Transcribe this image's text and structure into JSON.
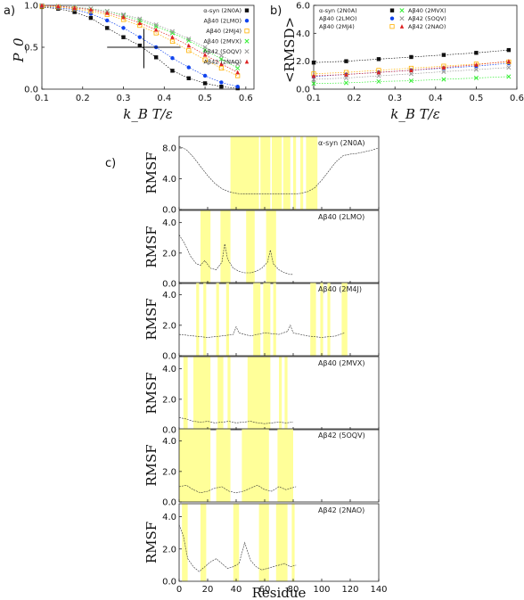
{
  "chart_data": [
    {
      "id": "a",
      "panel_label": "a)",
      "type": "scatter",
      "xlabel": "k_B T/ε",
      "ylabel": "P_0",
      "xlim": [
        0.1,
        0.62
      ],
      "ylim": [
        0,
        1.0
      ],
      "xticks": [
        "0.1",
        "0.2",
        "0.3",
        "0.4",
        "0.5",
        "0.6"
      ],
      "yticks": [
        "0.0",
        "0.5",
        "1.0"
      ],
      "legend_placement": "right",
      "series": [
        {
          "name": "α-syn (2N0A)",
          "color": "#111111",
          "marker": "square-filled",
          "x": [
            0.1,
            0.14,
            0.18,
            0.22,
            0.26,
            0.3,
            0.34,
            0.38,
            0.42,
            0.46,
            0.5,
            0.54,
            0.58
          ],
          "y": [
            0.98,
            0.96,
            0.92,
            0.85,
            0.73,
            0.62,
            0.52,
            0.38,
            0.22,
            0.13,
            0.07,
            0.03,
            0.01
          ]
        },
        {
          "name": "Aβ40 (2LMO)",
          "color": "#1144ee",
          "marker": "circle-filled",
          "x": [
            0.1,
            0.14,
            0.18,
            0.22,
            0.26,
            0.3,
            0.34,
            0.38,
            0.42,
            0.46,
            0.5,
            0.54,
            0.58
          ],
          "y": [
            0.99,
            0.97,
            0.95,
            0.9,
            0.82,
            0.73,
            0.62,
            0.5,
            0.37,
            0.26,
            0.16,
            0.08,
            0.03
          ]
        },
        {
          "name": "Aβ40 (2MJ4)",
          "color": "#ffb000",
          "marker": "square-open",
          "x": [
            0.1,
            0.14,
            0.18,
            0.22,
            0.26,
            0.3,
            0.34,
            0.38,
            0.42,
            0.46,
            0.5,
            0.54,
            0.58
          ],
          "y": [
            0.99,
            0.98,
            0.96,
            0.93,
            0.89,
            0.83,
            0.76,
            0.67,
            0.57,
            0.46,
            0.35,
            0.25,
            0.16
          ]
        },
        {
          "name": "Aβ40 (2MVX)",
          "color": "#33ee33",
          "marker": "x",
          "x": [
            0.1,
            0.14,
            0.18,
            0.22,
            0.26,
            0.3,
            0.34,
            0.38,
            0.42,
            0.46,
            0.5,
            0.54,
            0.58
          ],
          "y": [
            1.0,
            0.99,
            0.98,
            0.96,
            0.93,
            0.88,
            0.82,
            0.75,
            0.67,
            0.58,
            0.47,
            0.36,
            0.25
          ]
        },
        {
          "name": "Aβ42 (5OQV)",
          "color": "#999999",
          "marker": "x",
          "x": [
            0.1,
            0.14,
            0.18,
            0.22,
            0.26,
            0.3,
            0.34,
            0.38,
            0.42,
            0.46,
            0.5,
            0.54,
            0.58
          ],
          "y": [
            1.0,
            0.99,
            0.98,
            0.96,
            0.93,
            0.89,
            0.84,
            0.77,
            0.69,
            0.6,
            0.5,
            0.4,
            0.3
          ]
        },
        {
          "name": "Aβ42 (2NAO)",
          "color": "#dd2222",
          "marker": "triangle-filled",
          "x": [
            0.1,
            0.14,
            0.18,
            0.22,
            0.26,
            0.3,
            0.34,
            0.38,
            0.42,
            0.46,
            0.5,
            0.54,
            0.58
          ],
          "y": [
            1.0,
            0.99,
            0.97,
            0.95,
            0.91,
            0.86,
            0.79,
            0.71,
            0.62,
            0.52,
            0.41,
            0.3,
            0.2
          ]
        }
      ],
      "annotation": {
        "guide_x": 0.35,
        "guide_y": 0.5,
        "hline_x": [
          0.26,
          0.44
        ],
        "vline_y": [
          0.25,
          0.72
        ]
      }
    },
    {
      "id": "b",
      "panel_label": "b)",
      "type": "scatter",
      "xlabel": "k_B T/ε",
      "ylabel": "<RMSD>",
      "xlim": [
        0.1,
        0.6
      ],
      "ylim": [
        0,
        6.0
      ],
      "xticks": [
        "0.1",
        "0.2",
        "0.3",
        "0.4",
        "0.5",
        "0.6"
      ],
      "yticks": [
        "0.0",
        "2.0",
        "4.0",
        "6.0"
      ],
      "legend_placement": "top",
      "series": [
        {
          "name": "α-syn (2N0A)",
          "color": "#111111",
          "marker": "square-filled",
          "x": [
            0.1,
            0.18,
            0.26,
            0.34,
            0.42,
            0.5,
            0.58
          ],
          "y": [
            1.9,
            2.0,
            2.15,
            2.3,
            2.45,
            2.6,
            2.8
          ]
        },
        {
          "name": "Aβ40 (2LMO)",
          "color": "#1144ee",
          "marker": "circle-filled",
          "x": [
            0.1,
            0.18,
            0.26,
            0.34,
            0.42,
            0.5,
            0.58
          ],
          "y": [
            0.9,
            1.05,
            1.2,
            1.35,
            1.5,
            1.65,
            1.85
          ]
        },
        {
          "name": "Aβ40 (2MJ4)",
          "color": "#ffb000",
          "marker": "square-open",
          "x": [
            0.1,
            0.18,
            0.26,
            0.34,
            0.42,
            0.5,
            0.58
          ],
          "y": [
            1.1,
            1.2,
            1.35,
            1.5,
            1.65,
            1.8,
            1.95
          ]
        },
        {
          "name": "Aβ40 (2MVX)",
          "color": "#33ee33",
          "marker": "x",
          "x": [
            0.1,
            0.18,
            0.26,
            0.34,
            0.42,
            0.5,
            0.58
          ],
          "y": [
            0.4,
            0.45,
            0.55,
            0.6,
            0.7,
            0.8,
            0.9
          ]
        },
        {
          "name": "Aβ42 (5OQV)",
          "color": "#999999",
          "marker": "x",
          "x": [
            0.1,
            0.18,
            0.26,
            0.34,
            0.42,
            0.5,
            0.58
          ],
          "y": [
            0.7,
            0.8,
            0.95,
            1.1,
            1.25,
            1.4,
            1.55
          ]
        },
        {
          "name": "Aβ42 (2NAO)",
          "color": "#dd2222",
          "marker": "triangle-filled",
          "x": [
            0.1,
            0.18,
            0.26,
            0.34,
            0.42,
            0.5,
            0.58
          ],
          "y": [
            0.95,
            1.05,
            1.2,
            1.35,
            1.55,
            1.75,
            2.0
          ]
        }
      ]
    },
    {
      "id": "c",
      "panel_label": "c)",
      "type": "line",
      "xlabel": "Residue",
      "ylabel": "RMSF",
      "xlim": [
        0,
        140
      ],
      "xticks": [
        "0",
        "20",
        "40",
        "60",
        "80",
        "100",
        "120",
        "140"
      ],
      "shading_color": "#ffff99",
      "subplots": [
        {
          "title": "α-syn (2N0A)",
          "ylim": [
            0,
            9.5
          ],
          "yticks": [
            "0.0",
            "4.0",
            "8.0"
          ],
          "x": [
            0,
            5,
            10,
            15,
            20,
            25,
            30,
            35,
            40,
            45,
            50,
            55,
            60,
            65,
            70,
            75,
            80,
            85,
            90,
            95,
            100,
            105,
            110,
            115,
            120,
            125,
            130,
            135,
            140
          ],
          "y": [
            8.2,
            7.8,
            6.8,
            5.6,
            4.4,
            3.4,
            2.7,
            2.3,
            2.1,
            2.0,
            2.0,
            2.0,
            2.0,
            2.0,
            2.0,
            2.0,
            2.0,
            2.1,
            2.3,
            2.8,
            3.8,
            5.0,
            6.2,
            7.0,
            7.2,
            7.3,
            7.5,
            7.7,
            8.0
          ],
          "shaded": [
            [
              36,
              56
            ],
            [
              57,
              64
            ],
            [
              65,
              72
            ],
            [
              73,
              78
            ],
            [
              80,
              82
            ],
            [
              85,
              87
            ],
            [
              89,
              97
            ]
          ]
        },
        {
          "title": "Aβ40 (2LMO)",
          "ylim": [
            0,
            4.8
          ],
          "yticks": [
            "0.0",
            "2.0",
            "4.0"
          ],
          "x": [
            0,
            4,
            8,
            12,
            15,
            18,
            22,
            26,
            30,
            32,
            34,
            38,
            42,
            46,
            50,
            54,
            58,
            62,
            64,
            66,
            70,
            74,
            78,
            80
          ],
          "y": [
            3.2,
            2.6,
            1.8,
            1.3,
            1.2,
            1.5,
            1.0,
            0.9,
            1.4,
            2.6,
            1.6,
            1.0,
            0.8,
            0.7,
            0.7,
            0.8,
            1.0,
            1.4,
            2.2,
            1.3,
            0.9,
            0.7,
            0.6,
            0.6
          ],
          "shaded": [
            [
              15,
              22
            ],
            [
              29,
              36
            ],
            [
              47,
              53
            ],
            [
              61,
              68
            ]
          ]
        },
        {
          "title": "Aβ40 (2M4J)",
          "ylim": [
            0,
            4.8
          ],
          "yticks": [
            "0.0",
            "2.0",
            "4.0"
          ],
          "x": [
            0,
            10,
            20,
            30,
            38,
            40,
            42,
            50,
            60,
            70,
            76,
            78,
            80,
            90,
            100,
            110,
            116
          ],
          "y": [
            1.4,
            1.3,
            1.2,
            1.3,
            1.4,
            1.9,
            1.5,
            1.3,
            1.5,
            1.4,
            1.6,
            2.0,
            1.5,
            1.3,
            1.2,
            1.3,
            1.5
          ],
          "shaded": [
            [
              12,
              14
            ],
            [
              17,
              19
            ],
            [
              26,
              28
            ],
            [
              33,
              35
            ],
            [
              52,
              57
            ],
            [
              59,
              64
            ],
            [
              66,
              68
            ],
            [
              92,
              96
            ],
            [
              99,
              101
            ],
            [
              104,
              106
            ],
            [
              114,
              118
            ]
          ]
        },
        {
          "title": "Aβ40 (2MVX)",
          "ylim": [
            0,
            4.8
          ],
          "yticks": [
            "0.0",
            "2.0",
            "4.0"
          ],
          "x": [
            0,
            5,
            10,
            15,
            20,
            25,
            30,
            35,
            40,
            45,
            50,
            55,
            60,
            65,
            70,
            75,
            80
          ],
          "y": [
            0.8,
            0.7,
            0.55,
            0.5,
            0.55,
            0.45,
            0.5,
            0.55,
            0.45,
            0.5,
            0.55,
            0.45,
            0.4,
            0.45,
            0.5,
            0.45,
            0.5
          ],
          "shaded": [
            [
              3,
              6
            ],
            [
              10,
              22
            ],
            [
              27,
              31
            ],
            [
              34,
              36
            ],
            [
              48,
              64
            ],
            [
              70,
              72
            ],
            [
              74,
              76
            ]
          ]
        },
        {
          "title": "Aβ42 (5OQV)",
          "ylim": [
            0,
            4.8
          ],
          "yticks": [
            "0.0",
            "2.0",
            "4.0"
          ],
          "x": [
            0,
            5,
            10,
            15,
            20,
            25,
            30,
            35,
            40,
            45,
            50,
            55,
            60,
            65,
            70,
            75,
            82
          ],
          "y": [
            1.0,
            1.1,
            0.8,
            0.6,
            0.7,
            0.9,
            1.0,
            0.7,
            0.6,
            0.7,
            0.9,
            1.1,
            0.8,
            0.7,
            1.0,
            0.8,
            1.0
          ],
          "shaded": [
            [
              0,
              22
            ],
            [
              26,
              36
            ],
            [
              44,
              63
            ],
            [
              69,
              80
            ]
          ]
        },
        {
          "title": "Aβ42 (2NAO)",
          "ylim": [
            0,
            4.8
          ],
          "yticks": [
            "0.0",
            "2.0",
            "4.0"
          ],
          "x": [
            0,
            3,
            6,
            10,
            14,
            18,
            22,
            26,
            30,
            34,
            38,
            42,
            46,
            50,
            54,
            58,
            62,
            66,
            70,
            74,
            78,
            82
          ],
          "y": [
            3.5,
            2.8,
            1.4,
            0.9,
            0.6,
            0.9,
            1.2,
            1.4,
            1.1,
            0.8,
            0.9,
            1.1,
            2.4,
            1.3,
            0.9,
            0.7,
            0.8,
            0.9,
            1.0,
            1.1,
            0.9,
            1.0
          ],
          "shaded": [
            [
              2,
              6
            ],
            [
              15,
              19
            ],
            [
              38,
              42
            ],
            [
              56,
              63
            ],
            [
              68,
              76
            ],
            [
              79,
              81
            ]
          ]
        }
      ]
    }
  ]
}
